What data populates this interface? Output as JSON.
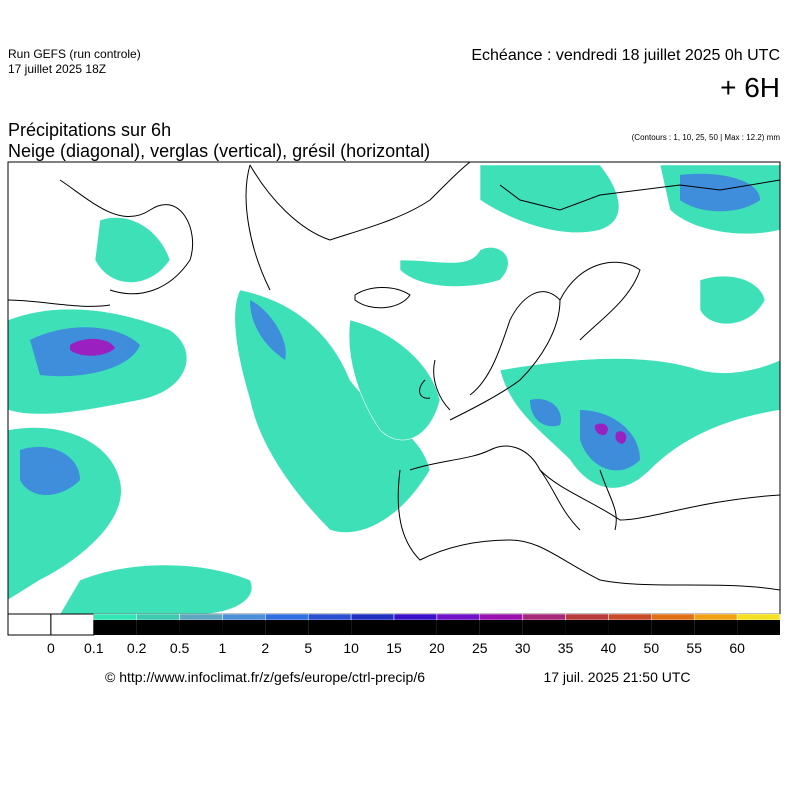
{
  "header": {
    "run": "Run GEFS (run controle)",
    "run_date": "17 juillet 2025 18Z",
    "valid": "Echéance : vendredi 18 juillet 2025 0h UTC",
    "lead": "+ 6H"
  },
  "map": {
    "title": "Précipitations sur 6h",
    "subtitle": "Neige (diagonal), verglas (vertical), grésil (horizontal)",
    "note": "(Contours : 1, 10, 25, 50 | Max : 12.2) mm"
  },
  "legend": {
    "labels": [
      "0",
      "0.1",
      "0.2",
      "0.5",
      "1",
      "2",
      "5",
      "10",
      "15",
      "20",
      "25",
      "30",
      "35",
      "40",
      "50",
      "55",
      "60"
    ],
    "colors": [
      "#ffffff",
      "#2fe6b4",
      "#3ccab0",
      "#5fa6bf",
      "#4a8fd8",
      "#2f6fe0",
      "#2a4fd0",
      "#1f2fc0",
      "#3a10c8",
      "#7010c8",
      "#9a10b0",
      "#a82878",
      "#b83a3a",
      "#cc4a28",
      "#e07018",
      "#f0a010",
      "#f4e020"
    ]
  },
  "footer": {
    "source": "© http://www.infoclimat.fr/z/gefs/europe/ctrl-precip/6",
    "generated": "17 juil. 2025 21:50 UTC"
  }
}
